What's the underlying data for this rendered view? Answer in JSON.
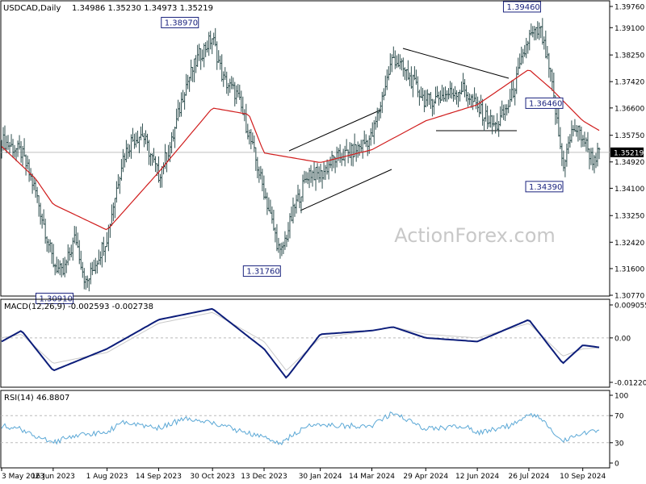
{
  "chart_data": [
    {
      "type": "ohlc",
      "symbol_label": "USDCAD,Daily",
      "ohlc_text": "1.34986 1.35230 1.34973 1.35219",
      "watermark": "ActionForex.com",
      "price_ticks": [
        "1.39760",
        "1.39100",
        "1.38250",
        "1.37420",
        "1.36600",
        "1.35750",
        "1.34920",
        "1.34100",
        "1.33250",
        "1.32420",
        "1.31600",
        "1.30770"
      ],
      "last_price": "1.35219",
      "ylim": [
        1.3077,
        1.3976
      ],
      "pivot_labels": [
        {
          "text": "1.30910",
          "value": 1.3091
        },
        {
          "text": "1.38970",
          "value": 1.3897
        },
        {
          "text": "1.31760",
          "value": 1.3176
        },
        {
          "text": "1.39460",
          "value": 1.3946
        },
        {
          "text": "1.36460",
          "value": 1.3646
        },
        {
          "text": "1.34390",
          "value": 1.3439
        }
      ],
      "x_labels": [
        "3 May 2023",
        "16 Jun 2023",
        "1 Aug 2023",
        "14 Sep 2023",
        "30 Oct 2023",
        "13 Dec 2023",
        "30 Jan 2024",
        "14 Mar 2024",
        "29 Apr 2024",
        "12 Jun 2024",
        "26 Jul 2024",
        "10 Sep 2024"
      ],
      "price_path": [
        [
          "3 May 2023",
          1.356
        ],
        [
          "20 May 2023",
          1.352
        ],
        [
          "1 Jun 2023",
          1.34
        ],
        [
          "16 Jun 2023",
          1.318
        ],
        [
          "24 Jun 2023",
          1.314
        ],
        [
          "5 Jul 2023",
          1.326
        ],
        [
          "14 Jul 2023",
          1.311
        ],
        [
          "1 Aug 2023",
          1.326
        ],
        [
          "14 Aug 2023",
          1.35
        ],
        [
          "22 Aug 2023",
          1.356
        ],
        [
          "31 Aug 2023",
          1.358
        ],
        [
          "14 Sep 2023",
          1.345
        ],
        [
          "25 Sep 2023",
          1.355
        ],
        [
          "6 Oct 2023",
          1.372
        ],
        [
          "18 Oct 2023",
          1.382
        ],
        [
          "30 Oct 2023",
          1.388
        ],
        [
          "8 Nov 2023",
          1.375
        ],
        [
          "20 Nov 2023",
          1.37
        ],
        [
          "30 Nov 2023",
          1.358
        ],
        [
          "13 Dec 2023",
          1.34
        ],
        [
          "27 Dec 2023",
          1.32
        ],
        [
          "8 Jan 2024",
          1.335
        ],
        [
          "20 Jan 2024",
          1.346
        ],
        [
          "30 Jan 2024",
          1.345
        ],
        [
          "10 Feb 2024",
          1.35
        ],
        [
          "25 Feb 2024",
          1.352
        ],
        [
          "14 Mar 2024",
          1.357
        ],
        [
          "1 Apr 2024",
          1.382
        ],
        [
          "14 Apr 2024",
          1.376
        ],
        [
          "29 Apr 2024",
          1.368
        ],
        [
          "15 May 2024",
          1.37
        ],
        [
          "31 May 2024",
          1.372
        ],
        [
          "12 Jun 2024",
          1.366
        ],
        [
          "28 Jun 2024",
          1.36
        ],
        [
          "10 Jul 2024",
          1.368
        ],
        [
          "26 Jul 2024",
          1.388
        ],
        [
          "5 Aug 2024",
          1.39
        ],
        [
          "14 Aug 2024",
          1.375
        ],
        [
          "24 Aug 2024",
          1.348
        ],
        [
          "2 Sep 2024",
          1.36
        ],
        [
          "10 Sep 2024",
          1.357
        ],
        [
          "18 Sep 2024",
          1.35
        ],
        [
          "24 Sep 2024",
          1.352
        ]
      ],
      "ma_path": [
        [
          "3 May 2023",
          1.354
        ],
        [
          "1 Jun 2023",
          1.344
        ],
        [
          "16 Jun 2023",
          1.336
        ],
        [
          "1 Aug 2023",
          1.328
        ],
        [
          "14 Sep 2023",
          1.346
        ],
        [
          "30 Oct 2023",
          1.366
        ],
        [
          "30 Nov 2023",
          1.364
        ],
        [
          "13 Dec 2023",
          1.352
        ],
        [
          "30 Jan 2024",
          1.349
        ],
        [
          "14 Mar 2024",
          1.353
        ],
        [
          "29 Apr 2024",
          1.362
        ],
        [
          "12 Jun 2024",
          1.367
        ],
        [
          "26 Jul 2024",
          1.378
        ],
        [
          "14 Aug 2024",
          1.372
        ],
        [
          "10 Sep 2024",
          1.362
        ],
        [
          "24 Sep 2024",
          1.359
        ]
      ]
    },
    {
      "type": "line",
      "label": "MACD(12,26,9) -0.002593 -0.002738",
      "ticks": [
        "0.009055",
        "0.00",
        "-0.012209"
      ],
      "ylim": [
        -0.012209,
        0.009055
      ],
      "macd_path": [
        [
          "3 May 2023",
          -0.001
        ],
        [
          "20 May 2023",
          0.002
        ],
        [
          "16 Jun 2023",
          -0.009
        ],
        [
          "1 Aug 2023",
          -0.003
        ],
        [
          "14 Sep 2023",
          0.005
        ],
        [
          "30 Oct 2023",
          0.008
        ],
        [
          "13 Dec 2023",
          -0.003
        ],
        [
          "1 Jan 2024",
          -0.011
        ],
        [
          "30 Jan 2024",
          0.001
        ],
        [
          "14 Mar 2024",
          0.002
        ],
        [
          "1 Apr 2024",
          0.003
        ],
        [
          "29 Apr 2024",
          0.0
        ],
        [
          "12 Jun 2024",
          -0.001
        ],
        [
          "26 Jul 2024",
          0.005
        ],
        [
          "24 Aug 2024",
          -0.007
        ],
        [
          "10 Sep 2024",
          -0.002
        ],
        [
          "24 Sep 2024",
          -0.0026
        ]
      ],
      "signal_path": [
        [
          "3 May 2023",
          0.0
        ],
        [
          "20 May 2023",
          0.001
        ],
        [
          "16 Jun 2023",
          -0.007
        ],
        [
          "1 Aug 2023",
          -0.004
        ],
        [
          "14 Sep 2023",
          0.004
        ],
        [
          "30 Oct 2023",
          0.007
        ],
        [
          "13 Dec 2023",
          -0.001
        ],
        [
          "1 Jan 2024",
          -0.009
        ],
        [
          "30 Jan 2024",
          0.0
        ],
        [
          "14 Mar 2024",
          0.002
        ],
        [
          "1 Apr 2024",
          0.003
        ],
        [
          "29 Apr 2024",
          0.001
        ],
        [
          "12 Jun 2024",
          0.0
        ],
        [
          "26 Jul 2024",
          0.004
        ],
        [
          "24 Aug 2024",
          -0.005
        ],
        [
          "10 Sep 2024",
          -0.003
        ],
        [
          "24 Sep 2024",
          -0.0027
        ]
      ]
    },
    {
      "type": "line",
      "label": "RSI(14) 46.8807",
      "ticks": [
        "100",
        "70",
        "30",
        "0"
      ],
      "ylim": [
        0,
        100
      ],
      "rsi_path": [
        [
          "3 May 2023",
          55
        ],
        [
          "20 May 2023",
          50
        ],
        [
          "1 Jun 2023",
          40
        ],
        [
          "16 Jun 2023",
          30
        ],
        [
          "1 Jul 2023",
          40
        ],
        [
          "1 Aug 2023",
          45
        ],
        [
          "14 Aug 2023",
          62
        ],
        [
          "14 Sep 2023",
          52
        ],
        [
          "6 Oct 2023",
          65
        ],
        [
          "30 Oct 2023",
          60
        ],
        [
          "20 Nov 2023",
          48
        ],
        [
          "13 Dec 2023",
          38
        ],
        [
          "27 Dec 2023",
          30
        ],
        [
          "20 Jan 2024",
          55
        ],
        [
          "14 Mar 2024",
          55
        ],
        [
          "1 Apr 2024",
          75
        ],
        [
          "29 Apr 2024",
          50
        ],
        [
          "31 May 2024",
          55
        ],
        [
          "12 Jun 2024",
          45
        ],
        [
          "10 Jul 2024",
          55
        ],
        [
          "26 Jul 2024",
          70
        ],
        [
          "5 Aug 2024",
          68
        ],
        [
          "24 Aug 2024",
          32
        ],
        [
          "10 Sep 2024",
          45
        ],
        [
          "24 Sep 2024",
          47
        ]
      ]
    }
  ]
}
